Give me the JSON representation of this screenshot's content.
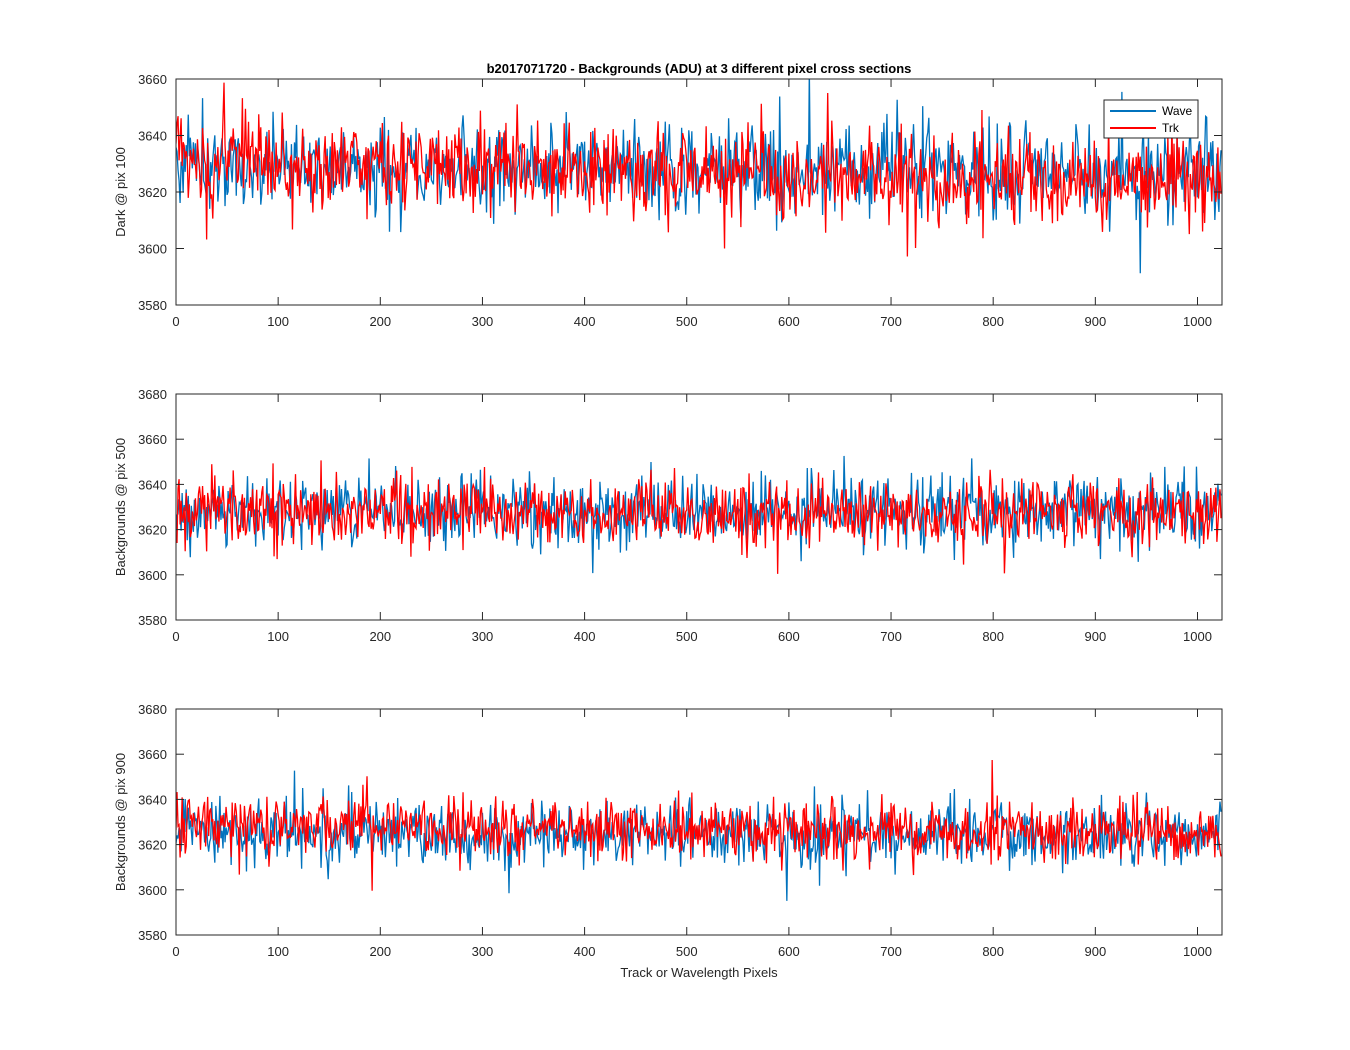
{
  "chart_data": [
    {
      "type": "line",
      "title": "b2017071720 - Backgrounds (ADU) at 3 different pixel cross sections",
      "xlabel": "",
      "ylabel": "Dark @ pix 100",
      "xlim": [
        0,
        1024
      ],
      "ylim": [
        3580,
        3660
      ],
      "xticks": [
        "0",
        "100",
        "200",
        "300",
        "400",
        "500",
        "600",
        "700",
        "800",
        "900",
        "1000"
      ],
      "yticks": [
        "3580",
        "3600",
        "3620",
        "3640",
        "3660"
      ],
      "legend": {
        "position": "top-right",
        "entries": [
          "Wave",
          "Trk"
        ]
      },
      "series": [
        {
          "name": "Wave",
          "color": "#0072BD",
          "mean_start": 3630,
          "mean_end": 3626,
          "spread": 9,
          "points": 1024
        },
        {
          "name": "Trk",
          "color": "#FF0000",
          "mean_start": 3632,
          "mean_end": 3622,
          "spread": 9,
          "points": 1024
        }
      ]
    },
    {
      "type": "line",
      "title": "",
      "xlabel": "",
      "ylabel": "Backgrounds @ pix 500",
      "xlim": [
        0,
        1024
      ],
      "ylim": [
        3580,
        3680
      ],
      "xticks": [
        "0",
        "100",
        "200",
        "300",
        "400",
        "500",
        "600",
        "700",
        "800",
        "900",
        "1000"
      ],
      "yticks": [
        "3580",
        "3600",
        "3620",
        "3640",
        "3660",
        "3680"
      ],
      "series": [
        {
          "name": "Wave",
          "color": "#0072BD",
          "mean_start": 3628,
          "mean_end": 3628,
          "spread": 9,
          "points": 1024
        },
        {
          "name": "Trk",
          "color": "#FF0000",
          "mean_start": 3628,
          "mean_end": 3627,
          "spread": 9,
          "points": 1024
        }
      ]
    },
    {
      "type": "line",
      "title": "",
      "xlabel": "Track or Wavelength Pixels",
      "ylabel": "Backgrounds @ pix 900",
      "xlim": [
        0,
        1024
      ],
      "ylim": [
        3580,
        3680
      ],
      "xticks": [
        "0",
        "100",
        "200",
        "300",
        "400",
        "500",
        "600",
        "700",
        "800",
        "900",
        "1000"
      ],
      "yticks": [
        "3580",
        "3600",
        "3620",
        "3640",
        "3660",
        "3680"
      ],
      "series": [
        {
          "name": "Wave",
          "color": "#0072BD",
          "mean_start": 3625,
          "mean_end": 3624,
          "spread": 8,
          "points": 1024
        },
        {
          "name": "Trk",
          "color": "#FF0000",
          "mean_start": 3630,
          "mean_end": 3624,
          "spread": 8,
          "points": 1024
        }
      ]
    }
  ]
}
